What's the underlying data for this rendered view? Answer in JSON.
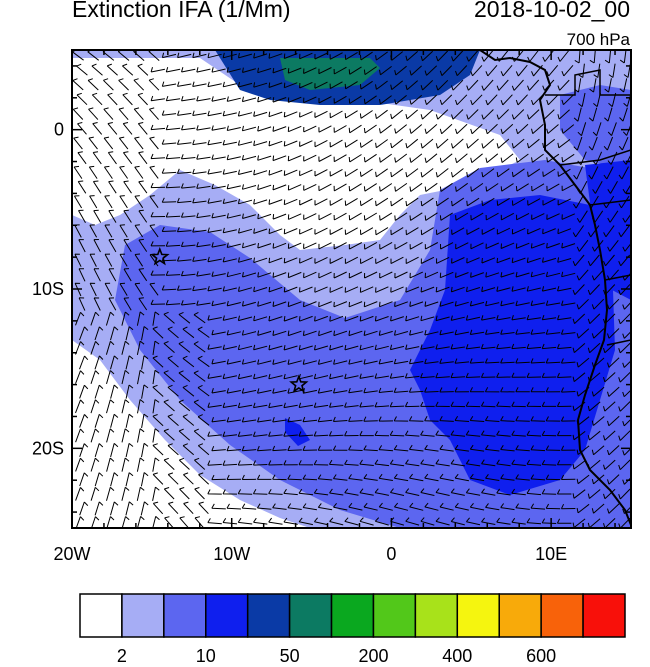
{
  "header": {
    "title": "Extinction IFA (1/Mm)",
    "datetime": "2018-10-02_00",
    "level": "700 hPa"
  },
  "map": {
    "lon_range": [
      -20,
      15
    ],
    "lat_range": [
      -25,
      5
    ],
    "x_tick_labels": [
      {
        "lon": -20,
        "label": "20W"
      },
      {
        "lon": -10,
        "label": "10W"
      },
      {
        "lon": 0,
        "label": "0"
      },
      {
        "lon": 10,
        "label": "10E"
      }
    ],
    "y_tick_labels": [
      {
        "lat": 0,
        "label": "0"
      },
      {
        "lat": -10,
        "label": "10S"
      },
      {
        "lat": -20,
        "label": "20S"
      }
    ],
    "markers": [
      {
        "name": "star-marker",
        "lon": -14.5,
        "lat": -8.0
      },
      {
        "name": "star-marker",
        "lon": -5.8,
        "lat": -16.0
      }
    ]
  },
  "colorbar": {
    "colors": [
      "#ffffff",
      "#a6adf5",
      "#5c66f0",
      "#0f1fee",
      "#0a3aa6",
      "#0c7a62",
      "#0aa81f",
      "#52c81a",
      "#a8e21a",
      "#f5f50f",
      "#f8aa0a",
      "#f8620a",
      "#f8100a"
    ],
    "labels": [
      {
        "index": 1,
        "text": "2"
      },
      {
        "index": 3,
        "text": "10"
      },
      {
        "index": 5,
        "text": "50"
      },
      {
        "index": 7,
        "text": "200"
      },
      {
        "index": 9,
        "text": "400"
      },
      {
        "index": 11,
        "text": "600"
      }
    ]
  }
}
